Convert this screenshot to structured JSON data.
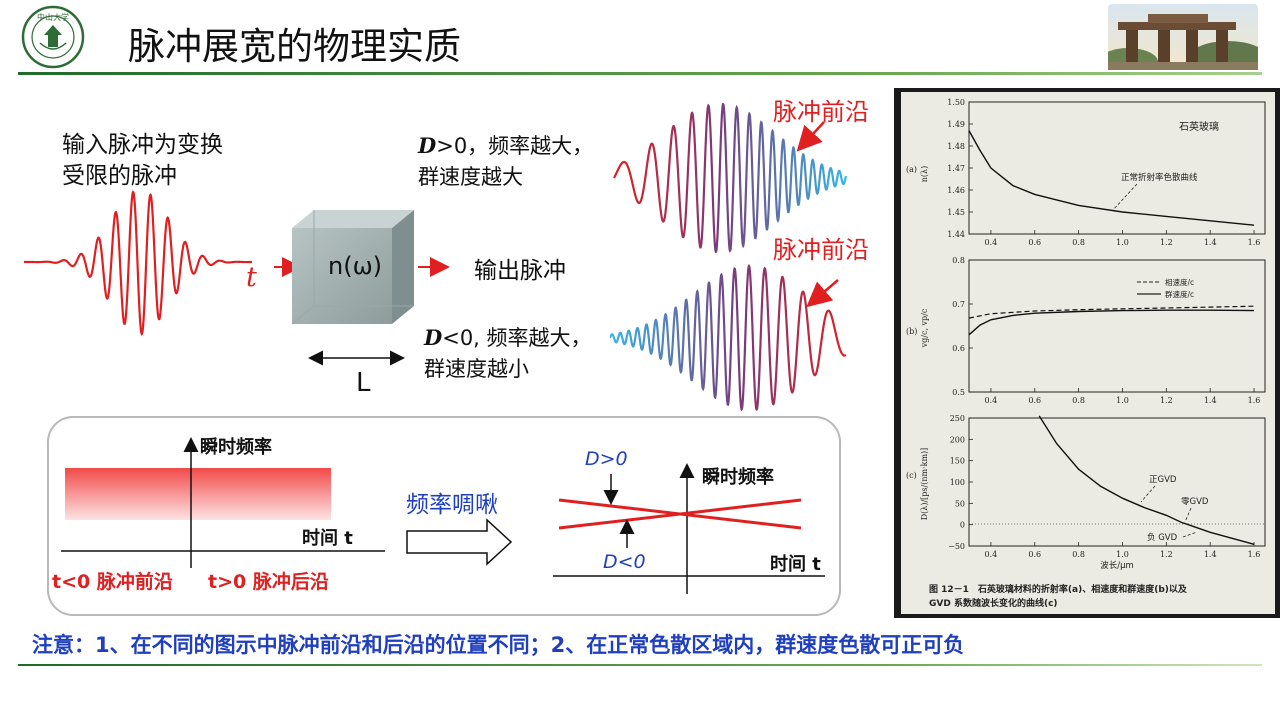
{
  "title": "脉冲展宽的物理实质",
  "logo": {
    "text": "中山大学",
    "ring_text": "SUN YAT-SEN UNIVERSITY"
  },
  "input_desc": [
    "输入脉冲为变换",
    "受限的脉冲"
  ],
  "time_symbol": "t",
  "medium": {
    "label": "n(ω)",
    "length_label": "L"
  },
  "output_label": "输出脉冲",
  "d_positive": {
    "line1_var": "D",
    "line1_rest": ">0，频率越大，",
    "line2": "群速度越大"
  },
  "d_negative": {
    "line1_var": "D",
    "line1_rest": "<0, 频率越大，",
    "line2": "群速度越小"
  },
  "pulse_front_label": "脉冲前沿",
  "box": {
    "y_axis": "瞬时频率",
    "x_axis": "时间 t",
    "t_neg": "t<0 脉冲前沿",
    "t_pos": "t>0 脉冲后沿",
    "chirp_label": "频率啁啾",
    "d_pos_label": "D>0",
    "d_neg_label": "D<0"
  },
  "note": "注意：1、在不同的图示中脉冲前沿和后沿的位置不同；2、在正常色散区域内，群速度色散可正可负",
  "scan": {
    "panel_a": {
      "tag": "(a)",
      "ylabel": "n(λ)",
      "yticks": [
        "1.50",
        "1.49",
        "1.48",
        "1.47",
        "1.46",
        "1.45",
        "1.44"
      ],
      "legend": "石英玻璃",
      "annotation": "正常折射率色散曲线"
    },
    "panel_b": {
      "tag": "(b)",
      "ylabel": "vg/c, vp/c",
      "yticks": [
        "0.8",
        "0.7",
        "0.6",
        "0.5"
      ],
      "legend": [
        "相速度/c",
        "群速度/c"
      ]
    },
    "panel_c": {
      "tag": "(c)",
      "ylabel": "D(λ)/[ps/(nm·km)]",
      "yticks": [
        "250",
        "200",
        "150",
        "100",
        "50",
        "0",
        "−50"
      ],
      "annotations": [
        "正GVD",
        "零GVD",
        "负 GVD"
      ],
      "xlabel": "波长/μm"
    },
    "xticks": [
      "0.4",
      "0.6",
      "0.8",
      "1.0",
      "1.2",
      "1.4",
      "1.6"
    ],
    "caption": [
      "图 12－1　石英玻璃材料的折射率(a)、相速度和群速度(b)以及",
      "GVD 系数随波长变化的曲线(c)"
    ],
    "curves": {
      "n": [
        [
          0.3,
          1.487
        ],
        [
          0.35,
          1.478
        ],
        [
          0.4,
          1.47
        ],
        [
          0.5,
          1.462
        ],
        [
          0.6,
          1.458
        ],
        [
          0.8,
          1.453
        ],
        [
          1.0,
          1.45
        ],
        [
          1.2,
          1.448
        ],
        [
          1.4,
          1.446
        ],
        [
          1.6,
          1.444
        ]
      ],
      "vp": [
        [
          0.3,
          0.668
        ],
        [
          0.4,
          0.678
        ],
        [
          0.6,
          0.684
        ],
        [
          0.8,
          0.687
        ],
        [
          1.0,
          0.689
        ],
        [
          1.2,
          0.691
        ],
        [
          1.4,
          0.693
        ],
        [
          1.6,
          0.695
        ]
      ],
      "vg": [
        [
          0.3,
          0.63
        ],
        [
          0.35,
          0.652
        ],
        [
          0.4,
          0.664
        ],
        [
          0.5,
          0.674
        ],
        [
          0.6,
          0.679
        ],
        [
          0.8,
          0.683
        ],
        [
          1.0,
          0.685
        ],
        [
          1.2,
          0.686
        ],
        [
          1.4,
          0.686
        ],
        [
          1.6,
          0.685
        ]
      ],
      "D": [
        [
          0.62,
          255
        ],
        [
          0.7,
          190
        ],
        [
          0.8,
          130
        ],
        [
          0.9,
          90
        ],
        [
          1.0,
          62
        ],
        [
          1.1,
          40
        ],
        [
          1.2,
          22
        ],
        [
          1.27,
          5
        ],
        [
          1.3,
          0
        ],
        [
          1.4,
          -18
        ],
        [
          1.5,
          -32
        ],
        [
          1.6,
          -46
        ]
      ]
    }
  }
}
